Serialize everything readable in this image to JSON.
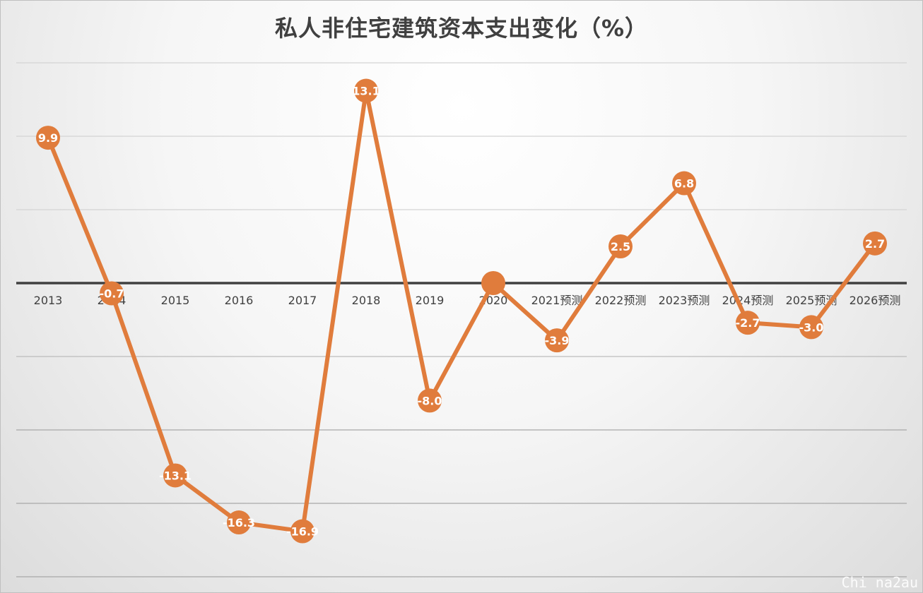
{
  "chart_data": {
    "type": "line",
    "title": "私人非住宅建筑资本支出变化（%）",
    "categories": [
      "2013",
      "2014",
      "2015",
      "2016",
      "2017",
      "2018",
      "2019",
      "2020",
      "2021预测",
      "2022预测",
      "2023预测",
      "2024预测",
      "2025预测",
      "2026预测"
    ],
    "values": [
      9.9,
      -0.7,
      -13.1,
      -16.3,
      -16.9,
      13.1,
      -8.0,
      0.0,
      -3.9,
      2.5,
      6.8,
      -2.7,
      -3.0,
      2.7
    ],
    "value_labels": [
      "9.9",
      "-0.7",
      "-13.1",
      "-16.3",
      "-16.9",
      "13.1",
      "-8.0",
      "",
      "-3.9",
      "2.5",
      "6.8",
      "-2.7",
      "-3.0",
      "2.7"
    ],
    "ylim": [
      -20,
      15
    ],
    "y_gridlines": [
      15,
      10,
      5,
      0,
      -5,
      -10,
      -15,
      -20
    ],
    "grid": true,
    "legend": "none",
    "xlabel": "",
    "ylabel": "",
    "colors": {
      "line": "#e07c3c",
      "label_text": "#ffffff",
      "zero_axis": "#404040",
      "grid": "#d4d4d4",
      "category_text": "#404040"
    }
  },
  "watermark": "Chi na2au"
}
